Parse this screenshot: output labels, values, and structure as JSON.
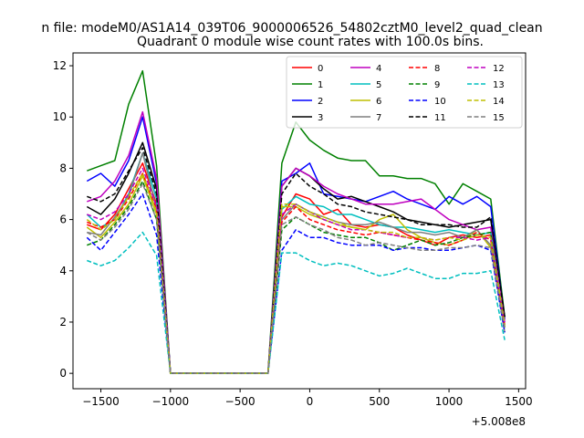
{
  "chart_data": {
    "type": "line",
    "suptitle": "n file: modeM0/AS1A14_039T06_9000006526_54802cztM0_level2_quad_clean",
    "title": "Quadrant 0 module wise count rates with 100.0s bins.",
    "xlabel": "",
    "ylabel": "",
    "x_offset_label": "+5.008e8",
    "xlim": [
      -1700,
      1550
    ],
    "ylim": [
      -0.6,
      12.5
    ],
    "xticks": [
      -1500,
      -1000,
      -500,
      0,
      500,
      1000,
      1500
    ],
    "xtick_labels": [
      "−1500",
      "−1000",
      "−500",
      "0",
      "500",
      "1000",
      "1500"
    ],
    "yticks": [
      0,
      2,
      4,
      6,
      8,
      10,
      12
    ],
    "ytick_labels": [
      "0",
      "2",
      "4",
      "6",
      "8",
      "10",
      "12"
    ],
    "legend_position": "top-right",
    "x": [
      -1600,
      -1500,
      -1400,
      -1300,
      -1200,
      -1100,
      -1000,
      -900,
      -800,
      -700,
      -600,
      -500,
      -400,
      -300,
      -200,
      -100,
      0,
      100,
      200,
      300,
      400,
      500,
      600,
      700,
      800,
      900,
      1000,
      1100,
      1200,
      1300,
      1400
    ],
    "series": [
      {
        "name": "0",
        "color": "#ff0000",
        "dash": "solid",
        "values": [
          5.8,
          5.6,
          6.2,
          7.2,
          8.2,
          6.6,
          0,
          0,
          0,
          0,
          0,
          0,
          0,
          0,
          6.1,
          7.0,
          6.8,
          6.2,
          6.4,
          5.8,
          5.7,
          5.8,
          5.7,
          5.4,
          5.2,
          5.0,
          5.3,
          5.4,
          5.3,
          5.4,
          1.9
        ]
      },
      {
        "name": "1",
        "color": "#008000",
        "dash": "solid",
        "values": [
          7.9,
          8.1,
          8.3,
          10.5,
          11.8,
          8.1,
          0,
          0,
          0,
          0,
          0,
          0,
          0,
          0,
          8.2,
          9.8,
          9.1,
          8.7,
          8.4,
          8.3,
          8.3,
          7.7,
          7.7,
          7.6,
          7.6,
          7.4,
          6.6,
          7.4,
          7.1,
          6.8,
          2.2
        ]
      },
      {
        "name": "2",
        "color": "#0000ff",
        "dash": "solid",
        "values": [
          7.5,
          7.8,
          7.3,
          8.3,
          10.0,
          7.4,
          0,
          0,
          0,
          0,
          0,
          0,
          0,
          0,
          7.5,
          7.8,
          8.2,
          7.0,
          6.9,
          6.8,
          6.7,
          6.9,
          7.1,
          6.8,
          6.6,
          6.4,
          6.9,
          6.6,
          6.9,
          6.5,
          2.1
        ]
      },
      {
        "name": "3",
        "color": "#000000",
        "dash": "solid",
        "values": [
          6.5,
          6.2,
          6.8,
          7.8,
          9.0,
          7.2,
          0,
          0,
          0,
          0,
          0,
          0,
          0,
          0,
          7.3,
          8.0,
          7.7,
          7.2,
          6.8,
          6.9,
          6.7,
          6.5,
          6.3,
          6.0,
          5.9,
          5.8,
          5.7,
          5.8,
          5.9,
          6.0,
          2.2
        ]
      },
      {
        "name": "4",
        "color": "#bf00bf",
        "dash": "solid",
        "values": [
          6.7,
          6.9,
          7.5,
          8.5,
          10.2,
          7.6,
          0,
          0,
          0,
          0,
          0,
          0,
          0,
          0,
          7.3,
          8.0,
          7.7,
          7.3,
          7.0,
          6.8,
          6.6,
          6.6,
          6.6,
          6.7,
          6.8,
          6.4,
          6.0,
          5.8,
          5.6,
          5.7,
          2.0
        ]
      },
      {
        "name": "5",
        "color": "#00bfbf",
        "dash": "solid",
        "values": [
          6.2,
          5.7,
          6.0,
          7.0,
          8.6,
          6.8,
          0,
          0,
          0,
          0,
          0,
          0,
          0,
          0,
          6.4,
          6.9,
          6.6,
          6.5,
          6.2,
          6.2,
          6.0,
          5.8,
          5.7,
          5.7,
          5.6,
          5.5,
          5.6,
          5.5,
          5.4,
          5.5,
          1.8
        ]
      },
      {
        "name": "6",
        "color": "#bfbf00",
        "dash": "solid",
        "values": [
          5.7,
          5.3,
          5.9,
          6.6,
          7.7,
          6.2,
          0,
          0,
          0,
          0,
          0,
          0,
          0,
          0,
          6.5,
          6.5,
          6.2,
          6.0,
          5.8,
          5.7,
          5.6,
          6.0,
          6.2,
          5.6,
          5.3,
          5.1,
          5.0,
          5.2,
          5.6,
          4.9,
          1.8
        ]
      },
      {
        "name": "7",
        "color": "#7f7f7f",
        "dash": "solid",
        "values": [
          5.5,
          5.4,
          6.1,
          6.9,
          8.6,
          6.4,
          0,
          0,
          0,
          0,
          0,
          0,
          0,
          0,
          6.0,
          6.6,
          6.3,
          6.1,
          5.9,
          5.8,
          5.8,
          5.9,
          5.7,
          5.5,
          5.5,
          5.4,
          5.5,
          5.3,
          5.6,
          5.0,
          1.6
        ]
      },
      {
        "name": "8",
        "color": "#ff0000",
        "dash": "dashed",
        "values": [
          5.9,
          5.7,
          6.0,
          6.8,
          7.8,
          6.4,
          0,
          0,
          0,
          0,
          0,
          0,
          0,
          0,
          5.9,
          6.5,
          6.0,
          5.8,
          5.6,
          5.5,
          5.4,
          5.5,
          5.4,
          5.3,
          5.2,
          5.1,
          5.0,
          5.2,
          5.5,
          5.2,
          1.8
        ]
      },
      {
        "name": "9",
        "color": "#008000",
        "dash": "dashed",
        "values": [
          5.0,
          5.2,
          5.8,
          6.5,
          7.5,
          6.0,
          0,
          0,
          0,
          0,
          0,
          0,
          0,
          0,
          5.6,
          6.1,
          5.8,
          5.5,
          5.4,
          5.3,
          5.3,
          5.1,
          4.8,
          5.0,
          5.2,
          5.0,
          5.1,
          5.3,
          5.4,
          5.5,
          1.7
        ]
      },
      {
        "name": "10",
        "color": "#0000ff",
        "dash": "dashed",
        "values": [
          5.3,
          4.8,
          5.5,
          6.2,
          7.0,
          5.4,
          0,
          0,
          0,
          0,
          0,
          0,
          0,
          0,
          4.8,
          5.6,
          5.3,
          5.3,
          5.1,
          5.0,
          5.0,
          5.0,
          4.8,
          4.9,
          4.9,
          4.8,
          4.8,
          4.9,
          5.0,
          4.8,
          1.6
        ]
      },
      {
        "name": "11",
        "color": "#000000",
        "dash": "dashed",
        "values": [
          6.9,
          6.7,
          7.0,
          7.9,
          8.8,
          7.0,
          0,
          0,
          0,
          0,
          0,
          0,
          0,
          0,
          7.0,
          7.8,
          7.3,
          7.0,
          6.6,
          6.5,
          6.3,
          6.2,
          6.1,
          6.0,
          5.8,
          5.8,
          5.8,
          5.7,
          5.7,
          6.1,
          2.2
        ]
      },
      {
        "name": "12",
        "color": "#bf00bf",
        "dash": "dashed",
        "values": [
          6.2,
          6.0,
          6.3,
          7.0,
          8.0,
          6.5,
          0,
          0,
          0,
          0,
          0,
          0,
          0,
          0,
          6.2,
          6.6,
          6.3,
          6.0,
          5.8,
          5.6,
          5.6,
          5.5,
          5.4,
          5.3,
          5.3,
          5.2,
          5.3,
          5.3,
          5.2,
          5.3,
          1.9
        ]
      },
      {
        "name": "13",
        "color": "#00bfbf",
        "dash": "dashed",
        "values": [
          4.4,
          4.2,
          4.4,
          4.9,
          5.5,
          4.6,
          0,
          0,
          0,
          0,
          0,
          0,
          0,
          0,
          4.7,
          4.7,
          4.4,
          4.2,
          4.3,
          4.2,
          4.0,
          3.8,
          3.9,
          4.1,
          3.9,
          3.7,
          3.7,
          3.9,
          3.9,
          4.0,
          1.3
        ]
      },
      {
        "name": "14",
        "color": "#bfbf00",
        "dash": "dashed",
        "values": [
          6.0,
          5.6,
          6.0,
          6.9,
          7.8,
          6.3,
          0,
          0,
          0,
          0,
          0,
          0,
          0,
          0,
          6.6,
          6.6,
          6.3,
          6.1,
          5.9,
          5.7,
          5.6,
          5.5,
          5.5,
          5.3,
          5.3,
          5.2,
          5.3,
          5.2,
          5.4,
          5.3,
          1.9
        ]
      },
      {
        "name": "15",
        "color": "#7f7f7f",
        "dash": "dashed",
        "values": [
          5.5,
          5.2,
          5.7,
          6.4,
          7.4,
          6.0,
          0,
          0,
          0,
          0,
          0,
          0,
          0,
          0,
          5.8,
          6.1,
          5.8,
          5.6,
          5.3,
          5.2,
          5.0,
          5.1,
          5.0,
          4.9,
          4.8,
          4.8,
          4.9,
          4.9,
          5.0,
          4.9,
          1.7
        ]
      }
    ]
  }
}
